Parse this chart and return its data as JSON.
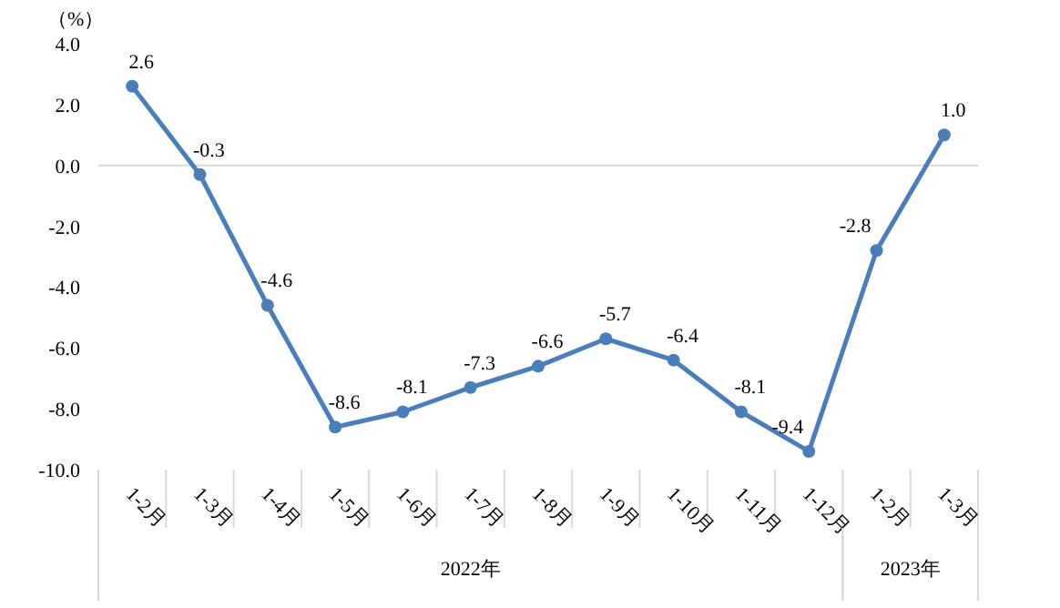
{
  "chart_data": {
    "type": "line",
    "ylabel": "（%）",
    "categories": [
      "1-2月",
      "1-3月",
      "1-4月",
      "1-5月",
      "1-6月",
      "1-7月",
      "1-8月",
      "1-9月",
      "1-10月",
      "1-11月",
      "1-12月",
      "1-2月",
      "1-3月"
    ],
    "series": [
      {
        "color": "#4a7ebb",
        "values": [
          2.6,
          -0.3,
          -4.6,
          -8.6,
          -8.1,
          -7.3,
          -6.6,
          -5.7,
          -6.4,
          -8.1,
          -9.4,
          -2.8,
          1.0
        ]
      }
    ],
    "ylim": [
      -10,
      4
    ],
    "yticks": [
      {
        "value": 4,
        "label": "4.0"
      },
      {
        "value": 2,
        "label": "2.0"
      },
      {
        "value": 0,
        "label": "0.0"
      },
      {
        "value": -2,
        "label": "-2.0"
      },
      {
        "value": -4,
        "label": "-4.0"
      },
      {
        "value": -6,
        "label": "-6.0"
      },
      {
        "value": -8,
        "label": "-8.0"
      },
      {
        "value": -10,
        "label": "-10.0"
      }
    ],
    "value_labels": [
      "2.6",
      "-0.3",
      "-4.6",
      "-8.6",
      "-8.1",
      "-7.3",
      "-6.6",
      "-5.7",
      "-6.4",
      "-8.1",
      "-9.4",
      "-2.8",
      "1.0"
    ],
    "annotations": [
      "2022年",
      "2023年"
    ],
    "ref_lines": [
      {
        "axis": "y",
        "value": 0,
        "color": "#d9d9d9"
      }
    ],
    "marker": "circle",
    "line_style": "solid",
    "grid": false
  }
}
